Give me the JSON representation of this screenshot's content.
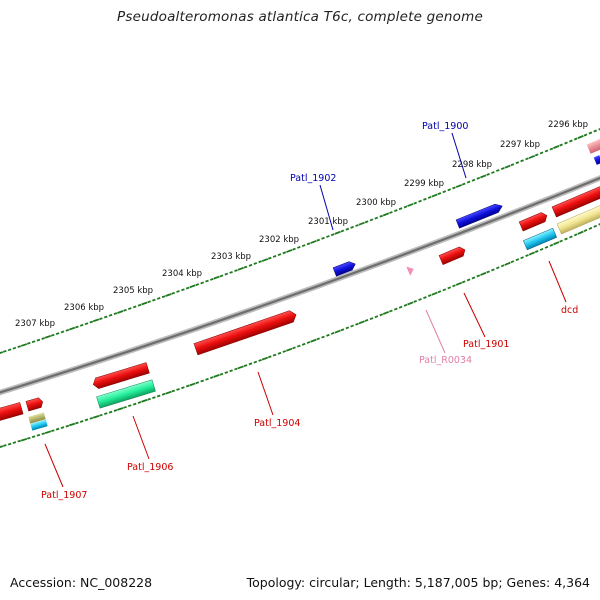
{
  "title": "Pseudoalteromonas atlantica T6c, complete genome",
  "footer": {
    "accession": "Accession: NC_008228",
    "topology": "Topology: circular; Length: 5,187,005 bp; Genes: 4,364"
  },
  "colors": {
    "forward_cds": "#e81010",
    "reverse_cds": "#1414cc",
    "rna": "#f090b8",
    "backbone": "#808080",
    "ticks": "#1e7a1e",
    "label_red": "#cc0000",
    "label_blue": "#0000aa",
    "label_pink": "#e080a8"
  },
  "scale_labels": [
    "2296 kbp",
    "2297 kbp",
    "2298 kbp",
    "2299 kbp",
    "2300 kbp",
    "2301 kbp",
    "2302 kbp",
    "2303 kbp",
    "2304 kbp",
    "2305 kbp",
    "2306 kbp",
    "2307 kbp"
  ],
  "gene_labels": [
    {
      "text": "Patl_1900",
      "color": "label_blue"
    },
    {
      "text": "Patl_1902",
      "color": "label_blue"
    },
    {
      "text": "Patl_1901",
      "color": "label_red"
    },
    {
      "text": "Patl_R0034",
      "color": "label_pink"
    },
    {
      "text": "dcd",
      "color": "label_red"
    },
    {
      "text": "Patl_1904",
      "color": "label_red"
    },
    {
      "text": "Patl_1906",
      "color": "label_red"
    },
    {
      "text": "Patl_1907",
      "color": "label_red"
    }
  ]
}
